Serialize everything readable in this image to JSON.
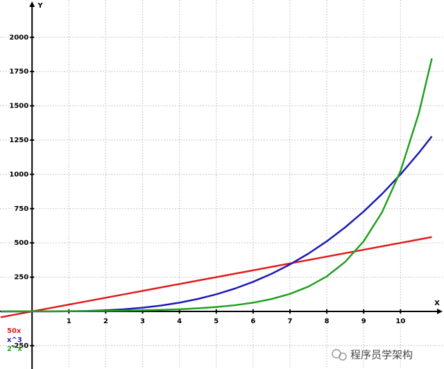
{
  "chart_data": {
    "type": "line",
    "x_label": "X",
    "y_label": "Y",
    "watermark": "程序员学架构",
    "x": [
      -0.85,
      -0.5,
      0,
      0.5,
      1,
      1.5,
      2,
      2.5,
      3,
      3.5,
      4,
      4.5,
      5,
      5.5,
      6,
      6.5,
      7,
      7.5,
      8,
      8.5,
      9,
      9.5,
      10,
      10.5,
      10.85
    ],
    "series": [
      {
        "name": "50x",
        "color": "#e01c1c",
        "values": [
          -42.5,
          -25,
          0,
          25,
          50,
          75,
          100,
          125,
          150,
          175,
          200,
          225,
          250,
          275,
          300,
          325,
          350,
          375,
          400,
          425,
          450,
          475,
          500,
          525,
          542.5
        ]
      },
      {
        "name": "x^3",
        "color": "#1a1ab8",
        "values": [
          -0.61,
          -0.13,
          0,
          0.13,
          1,
          3.38,
          8,
          15.63,
          27,
          42.88,
          64,
          91.13,
          125,
          166.38,
          216,
          274.63,
          343,
          421.88,
          512,
          614.13,
          729,
          857.38,
          1000,
          1157.63,
          1277.29
        ]
      },
      {
        "name": "2^x",
        "color": "#1fa01f",
        "values": [
          0.55,
          0.71,
          1,
          1.41,
          2,
          2.83,
          4,
          5.66,
          8,
          11.31,
          16,
          22.63,
          32,
          45.25,
          64,
          90.51,
          128,
          181.02,
          256,
          362.04,
          512,
          724.08,
          1024,
          1448.15,
          1845.8
        ]
      }
    ],
    "xlim": [
      -0.87,
      11.18
    ],
    "ylim": [
      -420,
      2272
    ],
    "xticks": [
      1,
      2,
      3,
      4,
      5,
      6,
      7,
      8,
      9,
      10
    ],
    "yticks": [
      -250,
      250,
      500,
      750,
      1000,
      1250,
      1500,
      1750,
      2000
    ],
    "grid": true
  }
}
